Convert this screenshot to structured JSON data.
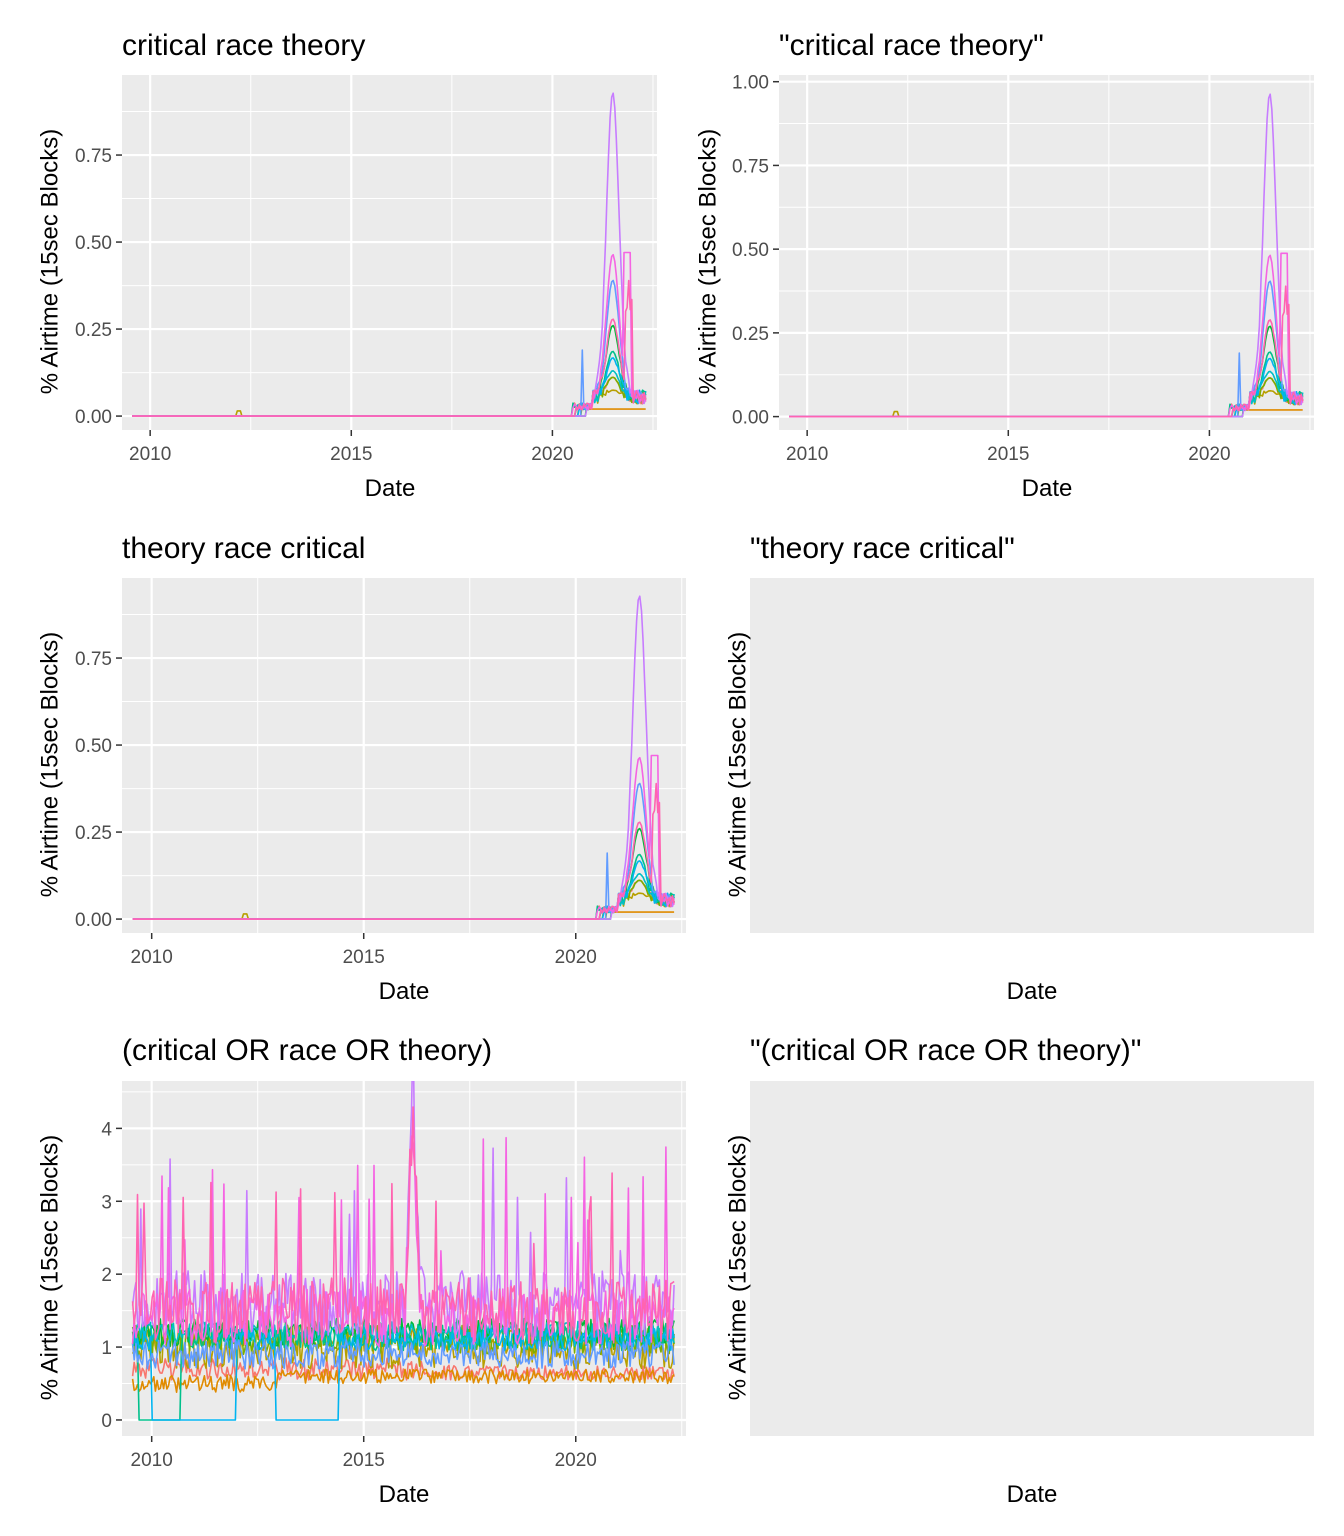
{
  "colors": {
    "panel_bg": "#EBEBEB",
    "grid_major": "#FFFFFF",
    "tick": "#333333",
    "series_palette": [
      "#F8766D",
      "#E08B00",
      "#B79F00",
      "#7CAE00",
      "#00BA38",
      "#00C08B",
      "#00BFC4",
      "#00B4F0",
      "#619CFF",
      "#C77CFF",
      "#F564E3",
      "#FF64B0"
    ]
  },
  "chart_data": [
    {
      "type": "line",
      "title": "critical race theory",
      "xlabel": "Date",
      "ylabel": "% Airtime (15sec Blocks)",
      "x_ticks": [
        "2010",
        "2015",
        "2020"
      ],
      "y_ticks": [
        "0.00",
        "0.25",
        "0.50",
        "0.75"
      ],
      "xlim": [
        2009.3,
        2022.6
      ],
      "ylim": [
        -0.04,
        0.98
      ],
      "pattern": "crt",
      "peak_scale": 0.93,
      "has_data": true
    },
    {
      "type": "line",
      "title": "\"critical race theory\"",
      "xlabel": "Date",
      "ylabel": "% Airtime (15sec Blocks)",
      "x_ticks": [
        "2010",
        "2015",
        "2020"
      ],
      "y_ticks": [
        "0.00",
        "0.25",
        "0.50",
        "0.75",
        "1.00"
      ],
      "xlim": [
        2009.3,
        2022.6
      ],
      "ylim": [
        -0.04,
        1.02
      ],
      "pattern": "crt",
      "peak_scale": 0.965,
      "has_data": true
    },
    {
      "type": "line",
      "title": "theory race critical",
      "xlabel": "Date",
      "ylabel": "% Airtime (15sec Blocks)",
      "x_ticks": [
        "2010",
        "2015",
        "2020"
      ],
      "y_ticks": [
        "0.00",
        "0.25",
        "0.50",
        "0.75"
      ],
      "xlim": [
        2009.3,
        2022.6
      ],
      "ylim": [
        -0.04,
        0.98
      ],
      "pattern": "crt",
      "peak_scale": 0.93,
      "has_data": true
    },
    {
      "type": "line",
      "title": "\"theory race critical\"",
      "xlabel": "Date",
      "ylabel": "% Airtime (15sec Blocks)",
      "x_ticks": [],
      "y_ticks": [],
      "has_data": false
    },
    {
      "type": "line",
      "title": "(critical OR race OR theory)",
      "xlabel": "Date",
      "ylabel": "% Airtime (15sec Blocks)",
      "x_ticks": [
        "2010",
        "2015",
        "2020"
      ],
      "y_ticks": [
        "0",
        "1",
        "2",
        "3",
        "4"
      ],
      "xlim": [
        2009.3,
        2022.6
      ],
      "ylim": [
        -0.22,
        4.65
      ],
      "pattern": "or",
      "has_data": true
    },
    {
      "type": "line",
      "title": "\"(critical OR race OR theory)\"",
      "xlabel": "Date",
      "ylabel": "% Airtime (15sec Blocks)",
      "x_ticks": [],
      "y_ticks": [],
      "has_data": false
    }
  ]
}
